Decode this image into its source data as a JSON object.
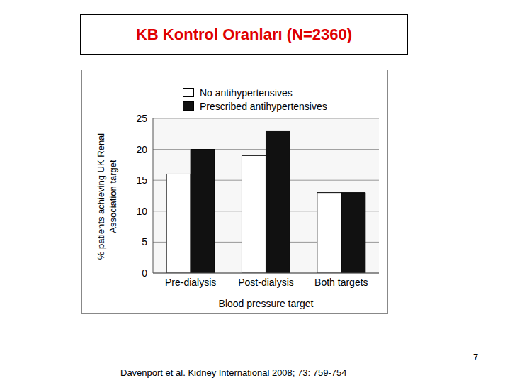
{
  "chart_data": {
    "type": "bar",
    "title": "KB Kontrol Oranları (N=2360)",
    "categories": [
      "Pre-dialysis",
      "Post-dialysis",
      "Both targets"
    ],
    "series": [
      {
        "name": "No antihypertensives",
        "color": "#ffffff",
        "values": [
          16,
          19,
          13
        ]
      },
      {
        "name": "Prescribed antihypertensives",
        "color": "#111111",
        "values": [
          20,
          23,
          13
        ]
      }
    ],
    "x_label": "Blood pressure target",
    "y_label": "% patients achieving UK Renal Association target",
    "ylim": [
      0,
      25
    ],
    "yticks": [
      0,
      5,
      10,
      15,
      20,
      25
    ],
    "grid": true,
    "legend": "top"
  },
  "page_number": "7",
  "source": "Davenport et al. Kidney International 2008; 73: 759-754"
}
